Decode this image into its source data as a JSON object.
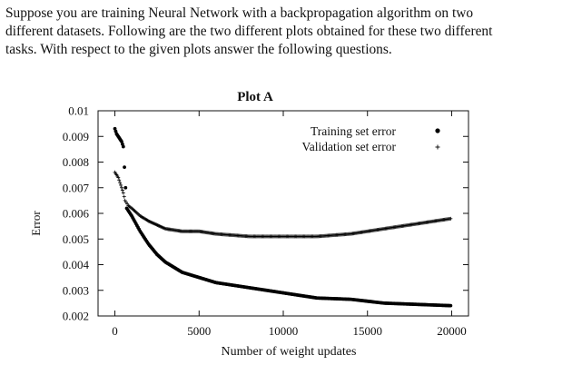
{
  "question": {
    "lines": [
      "Suppose you are training Neural Network with a backpropagation algorithm on two",
      "different datasets. Following are the two different plots obtained for these two different",
      "tasks.  With respect to the given plots answer the following questions."
    ]
  },
  "chart_data": {
    "type": "scatter",
    "title": "Plot A",
    "xlabel": "Number of weight updates",
    "ylabel": "Error",
    "xlim": [
      -1000,
      21000
    ],
    "ylim": [
      0.002,
      0.01
    ],
    "xticks": [
      0,
      5000,
      10000,
      15000,
      20000
    ],
    "xtick_labels": [
      "0",
      "5000",
      "10000",
      "15000",
      "20000"
    ],
    "yticks": [
      0.002,
      0.003,
      0.004,
      0.005,
      0.006,
      0.007,
      0.008,
      0.009,
      0.01
    ],
    "ytick_labels": [
      "0.002",
      "0.003",
      "0.004",
      "0.005",
      "0.006",
      "0.007",
      "0.008",
      "0.009",
      "0.01"
    ],
    "grid": false,
    "legend": "top-right",
    "series": [
      {
        "name": "Training set error",
        "marker": "circle",
        "color": "#000000",
        "x": [
          0,
          100,
          200,
          300,
          400,
          500,
          700,
          1000,
          1500,
          2000,
          2500,
          3000,
          4000,
          5000,
          6000,
          7000,
          8000,
          10000,
          12000,
          14000,
          16000,
          18000,
          20000
        ],
        "y": [
          0.0093,
          0.0091,
          0.009,
          0.0089,
          0.0088,
          0.0086,
          0.0062,
          0.0059,
          0.0053,
          0.0048,
          0.0044,
          0.0041,
          0.0037,
          0.0035,
          0.0033,
          0.0032,
          0.0031,
          0.0029,
          0.0027,
          0.00265,
          0.0025,
          0.00245,
          0.0024
        ]
      },
      {
        "name": "Validation set error",
        "marker": "plus",
        "color": "#000000",
        "x": [
          0,
          100,
          200,
          300,
          400,
          500,
          600,
          800,
          1000,
          1500,
          2000,
          3000,
          4000,
          5000,
          6000,
          8000,
          10000,
          12000,
          14000,
          16000,
          18000,
          20000
        ],
        "y": [
          0.0076,
          0.0075,
          0.0074,
          0.0072,
          0.007,
          0.0068,
          0.0065,
          0.0063,
          0.0062,
          0.0059,
          0.0057,
          0.0054,
          0.0053,
          0.0053,
          0.0052,
          0.0051,
          0.0051,
          0.0051,
          0.0052,
          0.0054,
          0.0056,
          0.0058
        ]
      }
    ]
  }
}
